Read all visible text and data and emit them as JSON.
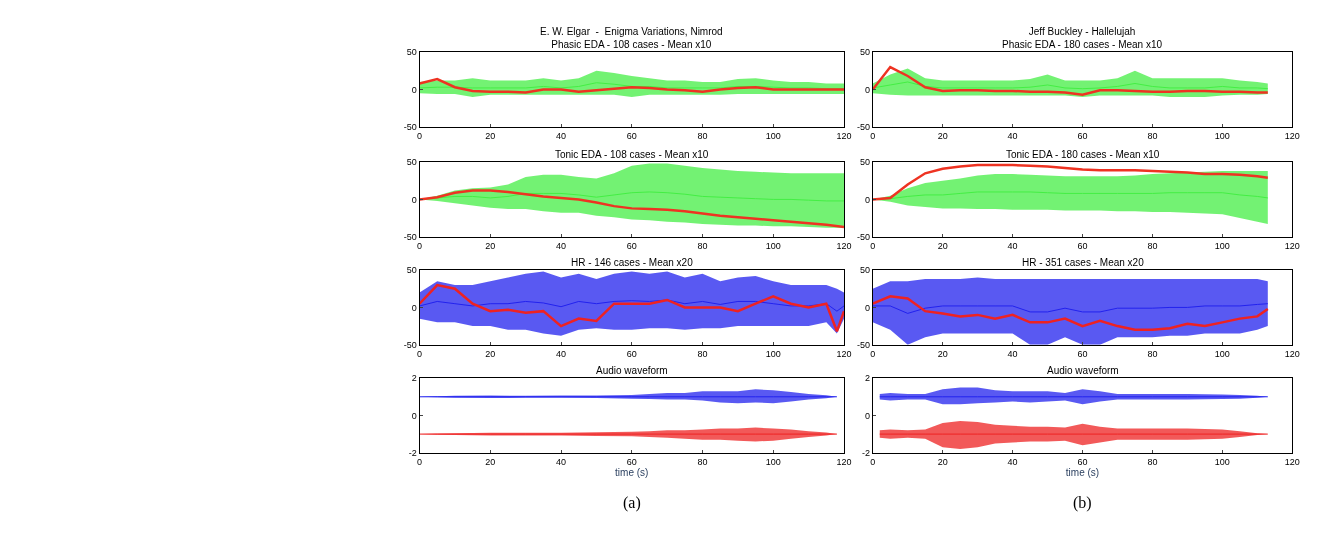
{
  "chart_data": [
    {
      "type": "line",
      "title": "E. W. Elgar  -  Enigma Variations, Nimrod",
      "subtitle": "Phasic EDA - 108 cases - Mean x10",
      "x": [
        0,
        5,
        10,
        15,
        20,
        25,
        30,
        35,
        40,
        45,
        50,
        55,
        60,
        65,
        70,
        75,
        80,
        85,
        90,
        95,
        100,
        105,
        110,
        115,
        120
      ],
      "xlim": [
        0,
        120
      ],
      "xticks": [
        0,
        20,
        40,
        60,
        80,
        100,
        120
      ],
      "ylim": [
        -50,
        50
      ],
      "yticks": [
        -50,
        0,
        50
      ],
      "marker": "none",
      "line_style": "solid",
      "series": [
        {
          "color": "#44ee44",
          "values": [
            2,
            3,
            3,
            2,
            2,
            2,
            2,
            4,
            2,
            4,
            9,
            7,
            4,
            4,
            2,
            2,
            2,
            2,
            4,
            4,
            3,
            2,
            2,
            1,
            1
          ],
          "lower": [
            -5,
            -6,
            -6,
            -10,
            -7,
            -7,
            -7,
            -7,
            -7,
            -7,
            -7,
            -7,
            -10,
            -7,
            -7,
            -7,
            -7,
            -7,
            -6,
            -6,
            -6,
            -6,
            -6,
            -6,
            -6
          ],
          "upper": [
            10,
            12,
            12,
            15,
            12,
            12,
            12,
            15,
            12,
            15,
            25,
            22,
            18,
            15,
            12,
            12,
            10,
            10,
            14,
            15,
            12,
            10,
            10,
            8,
            8
          ]
        },
        {
          "color": "#ee3322",
          "values": [
            8,
            14,
            3,
            -2,
            -3,
            -3,
            -4,
            0,
            0,
            -3,
            -1,
            1,
            3,
            2,
            0,
            -1,
            -3,
            0,
            2,
            3,
            0,
            0,
            0,
            0,
            0
          ]
        }
      ]
    },
    {
      "type": "line",
      "title": "Jeff Buckley - Hallelujah",
      "subtitle": "Phasic EDA - 180 cases - Mean x10",
      "x": [
        0,
        5,
        10,
        15,
        20,
        25,
        30,
        35,
        40,
        45,
        50,
        55,
        60,
        65,
        70,
        75,
        80,
        85,
        90,
        95,
        100,
        105,
        110,
        113
      ],
      "xlim": [
        0,
        120
      ],
      "xticks": [
        0,
        20,
        40,
        60,
        80,
        100,
        120
      ],
      "ylim": [
        -50,
        50
      ],
      "yticks": [
        -50,
        0,
        50
      ],
      "marker": "none",
      "line_style": "solid",
      "series": [
        {
          "color": "#44ee44",
          "values": [
            2,
            6,
            10,
            4,
            2,
            2,
            2,
            2,
            2,
            3,
            6,
            2,
            1,
            2,
            4,
            8,
            4,
            2,
            2,
            2,
            4,
            2,
            2,
            1
          ],
          "lower": [
            -5,
            -7,
            -8,
            -8,
            -8,
            -8,
            -8,
            -8,
            -8,
            -8,
            -8,
            -8,
            -10,
            -8,
            -8,
            -8,
            -8,
            -10,
            -10,
            -10,
            -8,
            -7,
            -7,
            -6
          ],
          "upper": [
            8,
            20,
            28,
            15,
            12,
            12,
            12,
            12,
            12,
            14,
            20,
            12,
            12,
            12,
            15,
            25,
            15,
            15,
            15,
            15,
            15,
            12,
            10,
            8
          ]
        },
        {
          "color": "#ee3322",
          "values": [
            0,
            30,
            18,
            3,
            -2,
            -1,
            -1,
            -2,
            -2,
            -3,
            -3,
            -4,
            -7,
            -1,
            -1,
            -2,
            -3,
            -3,
            -2,
            -2,
            -3,
            -3,
            -4,
            -4
          ]
        }
      ]
    },
    {
      "type": "line",
      "subtitle": "Tonic EDA - 108 cases - Mean x10",
      "x": [
        0,
        5,
        10,
        15,
        20,
        25,
        30,
        35,
        40,
        45,
        50,
        55,
        60,
        65,
        70,
        75,
        80,
        85,
        90,
        95,
        100,
        105,
        110,
        115,
        120
      ],
      "xlim": [
        0,
        120
      ],
      "xticks": [
        0,
        20,
        40,
        60,
        80,
        100,
        120
      ],
      "ylim": [
        -50,
        50
      ],
      "yticks": [
        -50,
        0,
        50
      ],
      "marker": "none",
      "line_style": "solid",
      "series": [
        {
          "color": "#44ee44",
          "values": [
            0,
            2,
            4,
            4,
            2,
            4,
            8,
            8,
            8,
            6,
            3,
            6,
            9,
            10,
            9,
            7,
            4,
            3,
            2,
            1,
            0,
            0,
            -1,
            -2,
            -2
          ],
          "lower": [
            0,
            -2,
            -5,
            -8,
            -11,
            -13,
            -13,
            -16,
            -18,
            -18,
            -22,
            -24,
            -27,
            -28,
            -30,
            -31,
            -33,
            -34,
            -35,
            -35,
            -36,
            -36,
            -37,
            -38,
            -38
          ],
          "upper": [
            0,
            5,
            12,
            15,
            16,
            20,
            30,
            33,
            33,
            30,
            28,
            35,
            45,
            48,
            48,
            45,
            42,
            40,
            38,
            37,
            36,
            35,
            35,
            35,
            35
          ]
        },
        {
          "color": "#ee3322",
          "values": [
            0,
            3,
            9,
            12,
            12,
            10,
            7,
            4,
            2,
            0,
            -4,
            -9,
            -12,
            -13,
            -14,
            -16,
            -19,
            -22,
            -24,
            -26,
            -28,
            -30,
            -32,
            -34,
            -37
          ]
        }
      ]
    },
    {
      "type": "line",
      "subtitle": "Tonic EDA - 180 cases - Mean x10",
      "x": [
        0,
        5,
        10,
        15,
        20,
        25,
        30,
        35,
        40,
        45,
        50,
        55,
        60,
        65,
        70,
        75,
        80,
        85,
        90,
        95,
        100,
        105,
        110,
        113
      ],
      "xlim": [
        0,
        120
      ],
      "xticks": [
        0,
        20,
        40,
        60,
        80,
        100,
        120
      ],
      "ylim": [
        -50,
        50
      ],
      "yticks": [
        -50,
        0,
        50
      ],
      "marker": "none",
      "line_style": "solid",
      "series": [
        {
          "color": "#44ee44",
          "values": [
            0,
            1,
            4,
            6,
            6,
            8,
            10,
            10,
            10,
            10,
            9,
            8,
            8,
            8,
            8,
            8,
            8,
            9,
            9,
            9,
            9,
            6,
            4,
            2
          ],
          "lower": [
            0,
            -3,
            -8,
            -10,
            -12,
            -12,
            -13,
            -13,
            -14,
            -14,
            -14,
            -15,
            -15,
            -15,
            -16,
            -16,
            -17,
            -17,
            -18,
            -19,
            -20,
            -25,
            -30,
            -33
          ],
          "upper": [
            0,
            5,
            15,
            22,
            25,
            28,
            32,
            34,
            34,
            33,
            32,
            31,
            31,
            31,
            31,
            32,
            34,
            35,
            36,
            37,
            38,
            38,
            38,
            38
          ]
        },
        {
          "color": "#ee3322",
          "values": [
            0,
            2,
            20,
            35,
            41,
            44,
            46,
            46,
            46,
            45,
            44,
            42,
            40,
            39,
            39,
            39,
            38,
            37,
            36,
            34,
            34,
            33,
            31,
            29
          ]
        }
      ]
    },
    {
      "type": "line",
      "subtitle": "HR - 146 cases - Mean x20",
      "x": [
        0,
        5,
        10,
        15,
        20,
        25,
        30,
        35,
        40,
        45,
        50,
        55,
        60,
        65,
        70,
        75,
        80,
        85,
        90,
        95,
        100,
        105,
        110,
        115,
        118,
        120
      ],
      "xlim": [
        0,
        120
      ],
      "xticks": [
        0,
        20,
        40,
        60,
        80,
        100,
        120
      ],
      "ylim": [
        -50,
        50
      ],
      "yticks": [
        -50,
        0,
        50
      ],
      "marker": "none",
      "line_style": "solid",
      "series": [
        {
          "color": "#2222ee",
          "values": [
            2,
            8,
            5,
            2,
            5,
            5,
            8,
            6,
            1,
            8,
            5,
            8,
            9,
            8,
            10,
            5,
            8,
            4,
            8,
            8,
            5,
            2,
            2,
            5,
            -5,
            2
          ],
          "lower": [
            -15,
            -20,
            -20,
            -25,
            -25,
            -30,
            -30,
            -35,
            -38,
            -30,
            -28,
            -30,
            -30,
            -28,
            -28,
            -30,
            -28,
            -28,
            -25,
            -25,
            -25,
            -25,
            -25,
            -20,
            -35,
            -15
          ],
          "upper": [
            20,
            35,
            30,
            30,
            35,
            40,
            45,
            48,
            40,
            45,
            38,
            45,
            48,
            45,
            48,
            40,
            45,
            35,
            40,
            42,
            35,
            30,
            30,
            30,
            25,
            20
          ]
        },
        {
          "color": "#ee2222",
          "values": [
            5,
            30,
            25,
            5,
            -5,
            -3,
            -7,
            -5,
            -25,
            -15,
            -18,
            5,
            5,
            5,
            10,
            0,
            0,
            0,
            -5,
            5,
            15,
            5,
            0,
            5,
            -32,
            -5
          ]
        }
      ]
    },
    {
      "type": "line",
      "subtitle": "HR - 351 cases - Mean x20",
      "x": [
        0,
        5,
        10,
        15,
        20,
        25,
        30,
        35,
        40,
        45,
        50,
        55,
        60,
        65,
        70,
        75,
        80,
        85,
        90,
        95,
        100,
        105,
        110,
        113
      ],
      "xlim": [
        0,
        120
      ],
      "xticks": [
        0,
        20,
        40,
        60,
        80,
        100,
        120
      ],
      "ylim": [
        -50,
        50
      ],
      "yticks": [
        -50,
        0,
        50
      ],
      "marker": "none",
      "line_style": "solid",
      "series": [
        {
          "color": "#2222ee",
          "values": [
            2,
            2,
            -8,
            -1,
            2,
            2,
            2,
            2,
            2,
            -6,
            -6,
            -1,
            -6,
            -6,
            -1,
            -1,
            -1,
            0,
            0,
            2,
            2,
            2,
            4,
            5
          ],
          "lower": [
            -20,
            -30,
            -50,
            -40,
            -35,
            -35,
            -35,
            -35,
            -35,
            -50,
            -50,
            -40,
            -50,
            -50,
            -40,
            -40,
            -40,
            -38,
            -38,
            -35,
            -35,
            -35,
            -30,
            -25
          ],
          "upper": [
            25,
            35,
            35,
            38,
            38,
            38,
            40,
            38,
            38,
            38,
            38,
            38,
            38,
            38,
            38,
            38,
            38,
            38,
            38,
            38,
            38,
            38,
            38,
            35
          ]
        },
        {
          "color": "#ee2222",
          "values": [
            5,
            15,
            12,
            -5,
            -8,
            -12,
            -10,
            -15,
            -10,
            -20,
            -20,
            -15,
            -25,
            -18,
            -25,
            -30,
            -30,
            -28,
            -22,
            -25,
            -20,
            -15,
            -12,
            -2
          ]
        }
      ]
    },
    {
      "type": "line",
      "subtitle": "Audio waveform",
      "xlabel": "time (s)",
      "annotations": [
        "(a)"
      ],
      "x": [
        0,
        5,
        10,
        20,
        30,
        40,
        50,
        60,
        65,
        70,
        75,
        80,
        85,
        90,
        95,
        100,
        105,
        110,
        115,
        118
      ],
      "xlim": [
        0,
        120
      ],
      "xticks": [
        0,
        20,
        40,
        60,
        80,
        100,
        120
      ],
      "ylim": [
        -2,
        2
      ],
      "yticks": [
        -2,
        0,
        2
      ],
      "marker": "none",
      "line_style": "solid",
      "series": [
        {
          "color": "#2222ee",
          "values": [
            1,
            1,
            1,
            1,
            1,
            1,
            1,
            1,
            1,
            1,
            1,
            1,
            1,
            1,
            1,
            1,
            1,
            1,
            1,
            1
          ],
          "lower": [
            1,
            0.97,
            0.95,
            0.93,
            0.95,
            0.95,
            0.93,
            0.9,
            0.88,
            0.85,
            0.85,
            0.8,
            0.7,
            0.65,
            0.7,
            0.65,
            0.75,
            0.85,
            0.92,
            1
          ],
          "upper": [
            1,
            1.03,
            1.05,
            1.07,
            1.05,
            1.07,
            1.07,
            1.1,
            1.15,
            1.2,
            1.2,
            1.3,
            1.3,
            1.3,
            1.4,
            1.35,
            1.25,
            1.15,
            1.08,
            1
          ]
        },
        {
          "color": "#ee2222",
          "values": [
            -1,
            -1,
            -1,
            -1,
            -1,
            -1,
            -1,
            -1,
            -1,
            -1,
            -1,
            -1,
            -1,
            -1,
            -1,
            -1,
            -1,
            -1,
            -1,
            -1
          ],
          "lower": [
            -1,
            -1.03,
            -1.05,
            -1.07,
            -1.07,
            -1.07,
            -1.1,
            -1.12,
            -1.15,
            -1.2,
            -1.25,
            -1.3,
            -1.3,
            -1.35,
            -1.4,
            -1.35,
            -1.25,
            -1.15,
            -1.08,
            -1
          ],
          "upper": [
            -1,
            -0.97,
            -0.95,
            -0.93,
            -0.93,
            -0.93,
            -0.9,
            -0.88,
            -0.85,
            -0.8,
            -0.8,
            -0.75,
            -0.7,
            -0.7,
            -0.65,
            -0.7,
            -0.75,
            -0.85,
            -0.92,
            -1
          ]
        }
      ]
    },
    {
      "type": "line",
      "subtitle": "Audio waveform",
      "xlabel": "time (s)",
      "annotations": [
        "(b)"
      ],
      "x": [
        2,
        5,
        10,
        15,
        20,
        25,
        30,
        35,
        40,
        45,
        50,
        55,
        60,
        65,
        70,
        80,
        90,
        100,
        105,
        110,
        113
      ],
      "xlim": [
        0,
        120
      ],
      "xticks": [
        0,
        20,
        40,
        60,
        80,
        100,
        120
      ],
      "ylim": [
        -2,
        2
      ],
      "yticks": [
        -2,
        0,
        2
      ],
      "marker": "none",
      "line_style": "solid",
      "series": [
        {
          "color": "#2222ee",
          "values": [
            1,
            1,
            1,
            1,
            1,
            1,
            1,
            1,
            1,
            1,
            1,
            1,
            1,
            1,
            1,
            1,
            1,
            1,
            1,
            1,
            1
          ],
          "lower": [
            0.85,
            0.8,
            0.85,
            0.85,
            0.6,
            0.6,
            0.65,
            0.7,
            0.75,
            0.7,
            0.75,
            0.8,
            0.6,
            0.75,
            0.85,
            0.85,
            0.85,
            0.88,
            0.9,
            0.95,
            1
          ],
          "upper": [
            1.15,
            1.2,
            1.15,
            1.15,
            1.4,
            1.5,
            1.5,
            1.35,
            1.3,
            1.3,
            1.3,
            1.2,
            1.4,
            1.3,
            1.15,
            1.15,
            1.15,
            1.12,
            1.1,
            1.05,
            1
          ]
        },
        {
          "color": "#ee2222",
          "values": [
            -1,
            -1,
            -1,
            -1,
            -1,
            -1,
            -1,
            -1,
            -1,
            -1,
            -1,
            -1,
            -1,
            -1,
            -1,
            -1,
            -1,
            -1,
            -1,
            -1,
            -1
          ],
          "lower": [
            -1.2,
            -1.25,
            -1.2,
            -1.25,
            -1.7,
            -1.8,
            -1.7,
            -1.5,
            -1.45,
            -1.4,
            -1.4,
            -1.35,
            -1.6,
            -1.45,
            -1.3,
            -1.3,
            -1.3,
            -1.25,
            -1.15,
            -1.05,
            -1
          ],
          "upper": [
            -0.8,
            -0.75,
            -0.8,
            -0.75,
            -0.4,
            -0.3,
            -0.35,
            -0.5,
            -0.55,
            -0.6,
            -0.6,
            -0.65,
            -0.45,
            -0.6,
            -0.7,
            -0.7,
            -0.7,
            -0.75,
            -0.85,
            -0.95,
            -1
          ]
        }
      ]
    }
  ]
}
